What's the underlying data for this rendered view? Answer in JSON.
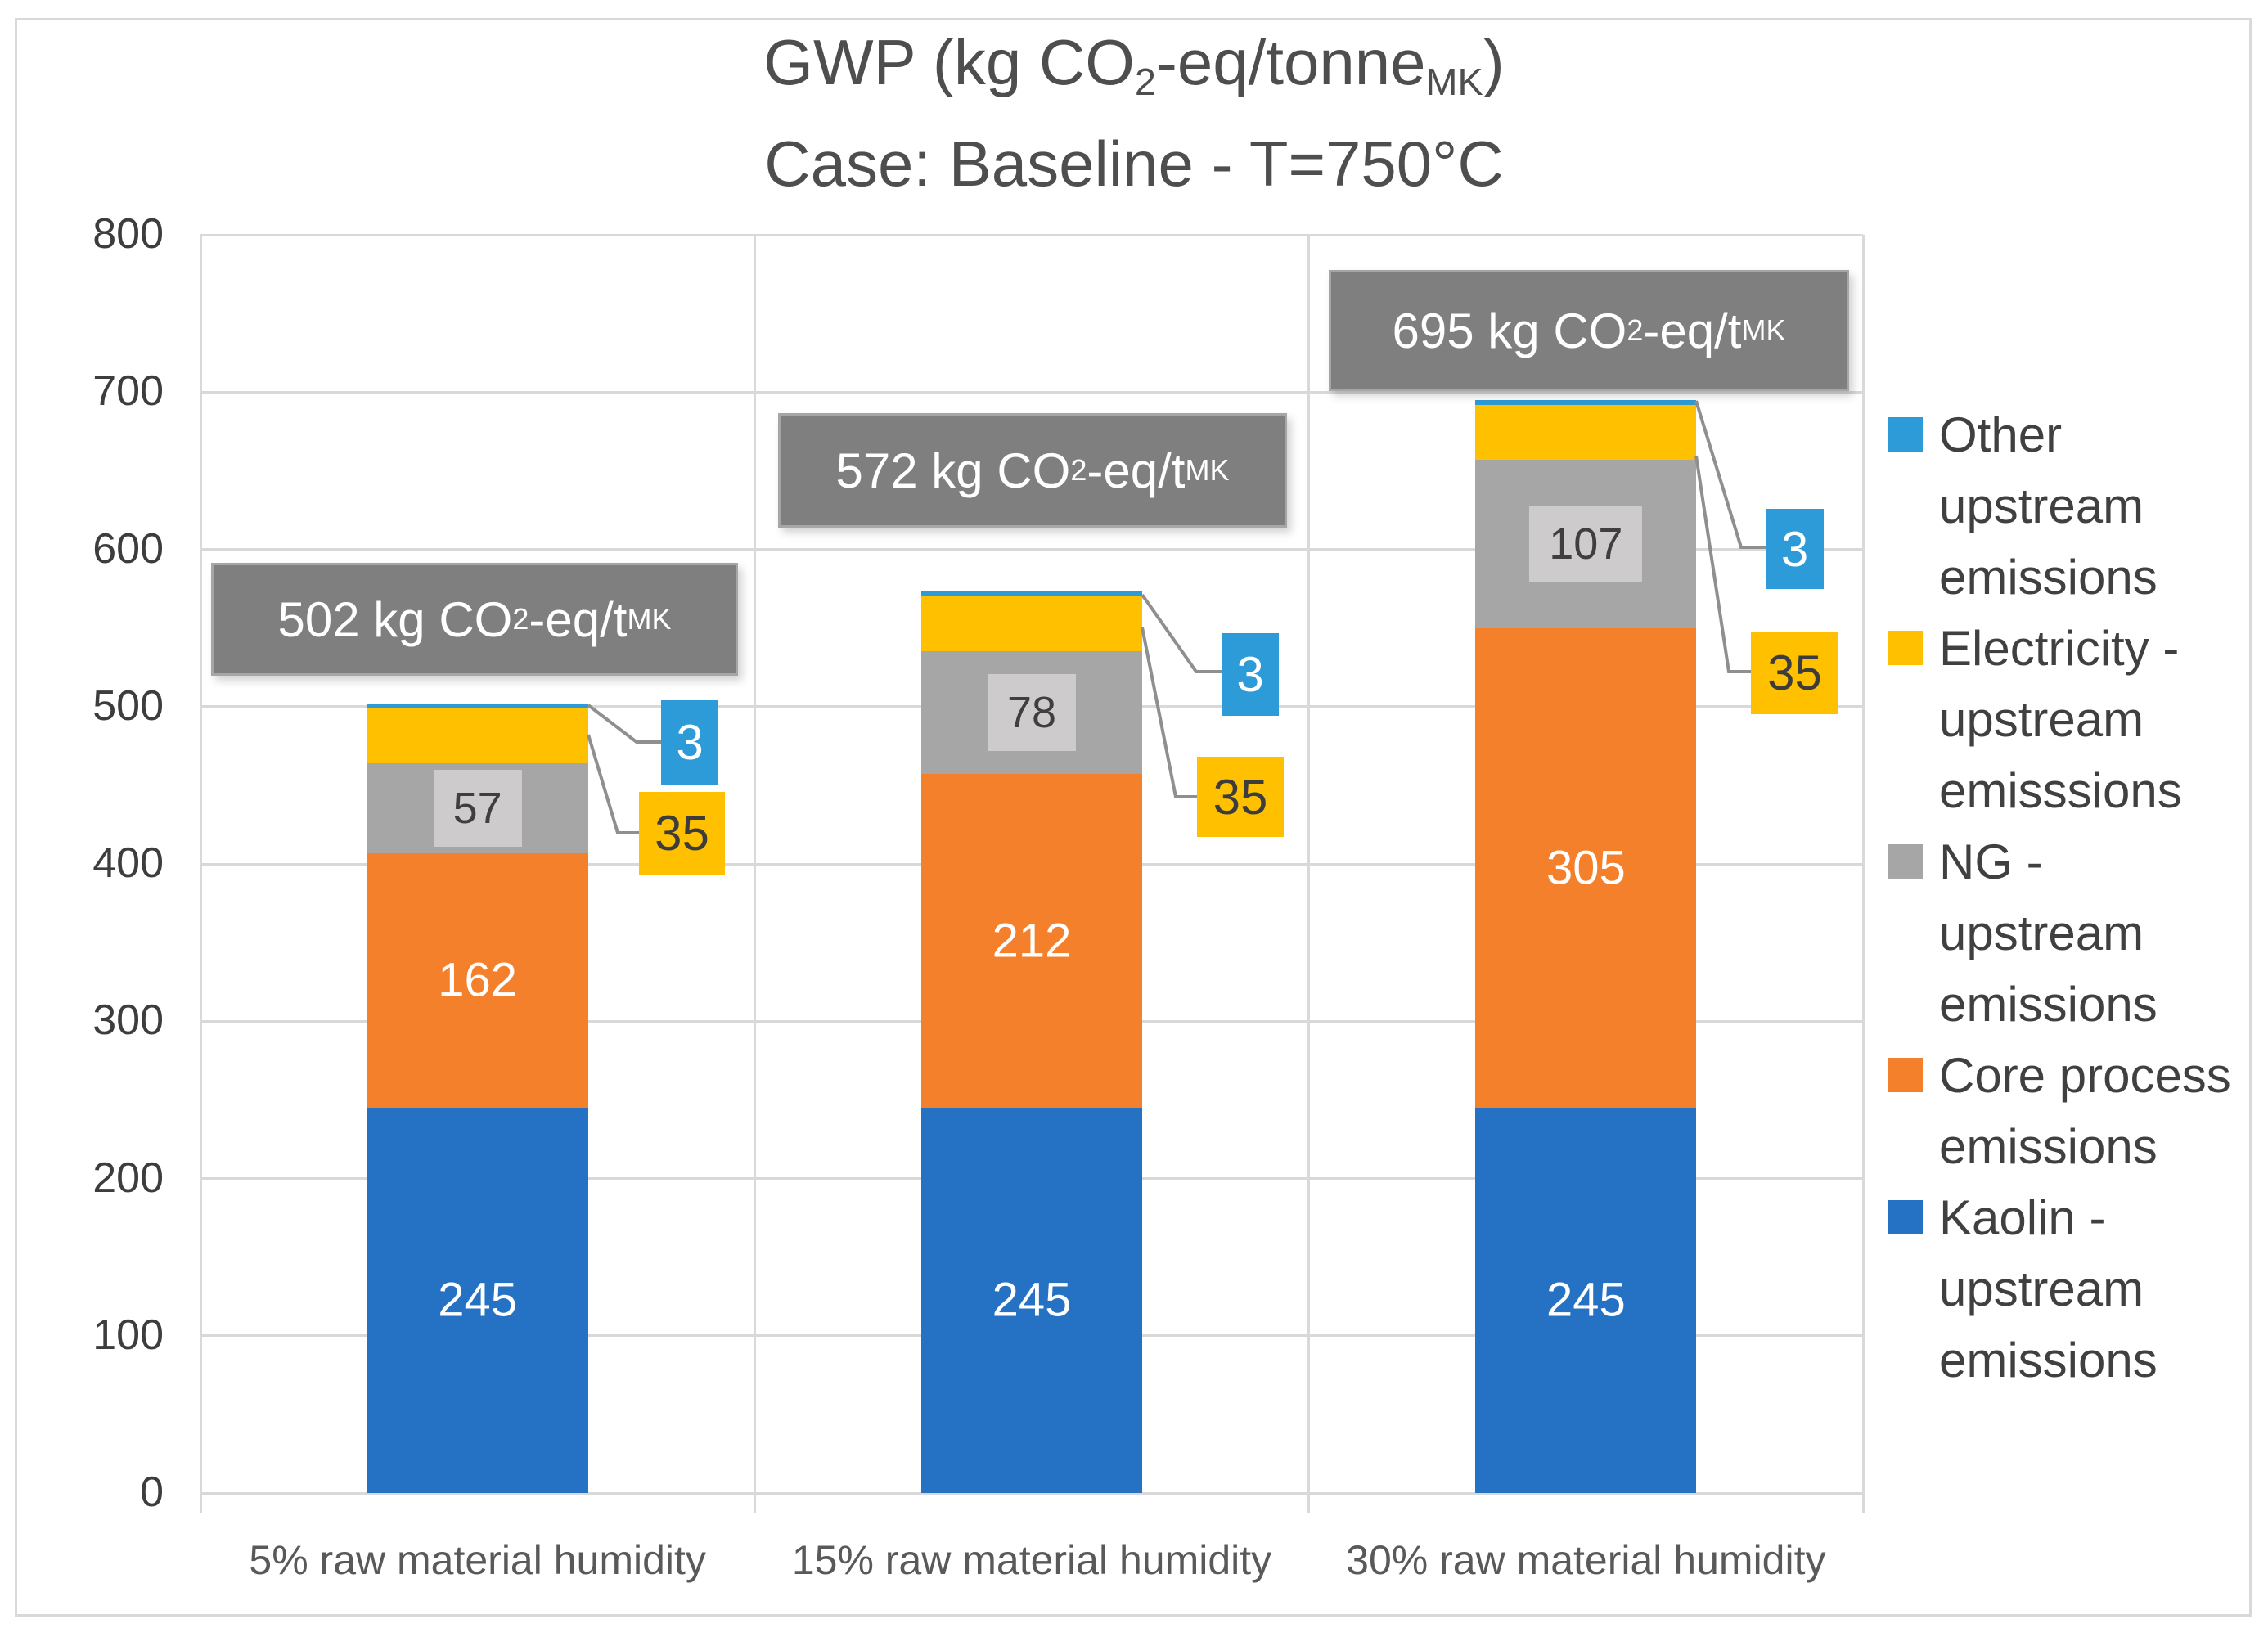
{
  "title": {
    "line1_parts": [
      "GWP (kg CO",
      "2",
      "-eq/tonne",
      "MK",
      ")"
    ],
    "line2": "Case: Baseline - T=750°C"
  },
  "legend": {
    "position": "right",
    "items": [
      {
        "label": "Other upstream emissions",
        "color": "#2d9bd7"
      },
      {
        "label": "Electricity - upstream emisssions",
        "color": "#ffc000"
      },
      {
        "label": "NG - upstream emissions",
        "color": "#a6a6a6"
      },
      {
        "label": "Core process emissions",
        "color": "#f5802c"
      },
      {
        "label": "Kaolin - upstream emissions",
        "color": "#2571c4"
      }
    ]
  },
  "chart_data": {
    "type": "bar",
    "stacked": true,
    "title": "GWP (kg CO2-eq/tonneMK)",
    "subtitle": "Case: Baseline - T=750°C",
    "categories": [
      "5% raw material humidity",
      "15% raw material humidity",
      "30% raw material humidity"
    ],
    "series": [
      {
        "name": "Kaolin - upstream emissions",
        "color": "#2571c4",
        "values": [
          245,
          245,
          245
        ],
        "label_style": "inside-white"
      },
      {
        "name": "Core process emissions",
        "color": "#f5802c",
        "values": [
          162,
          212,
          305
        ],
        "label_style": "inside-white"
      },
      {
        "name": "NG - upstream emissions",
        "color": "#a6a6a6",
        "values": [
          57,
          78,
          107
        ],
        "label_style": "inside-chip"
      },
      {
        "name": "Electricity - upstream emisssions",
        "color": "#ffc000",
        "values": [
          35,
          35,
          35
        ],
        "label_style": "callout-yellow"
      },
      {
        "name": "Other upstream emissions",
        "color": "#2d9bd7",
        "values": [
          3,
          3,
          3
        ],
        "label_style": "callout-blue"
      }
    ],
    "totals": [
      {
        "value": 502,
        "parts": [
          "502 kg CO",
          "2",
          "-eq/t",
          "MK"
        ]
      },
      {
        "value": 572,
        "parts": [
          "572 kg CO",
          "2",
          "-eq/t",
          "MK"
        ]
      },
      {
        "value": 695,
        "parts": [
          "695 kg CO",
          "2",
          "-eq/t",
          "MK"
        ]
      }
    ],
    "xlabel": "",
    "ylabel": "",
    "ylim": [
      0,
      800
    ],
    "ytick_step": 100,
    "yticks": [
      800,
      700,
      600,
      500,
      400,
      300,
      200,
      100,
      0
    ],
    "grid": true,
    "legend_position": "right"
  }
}
